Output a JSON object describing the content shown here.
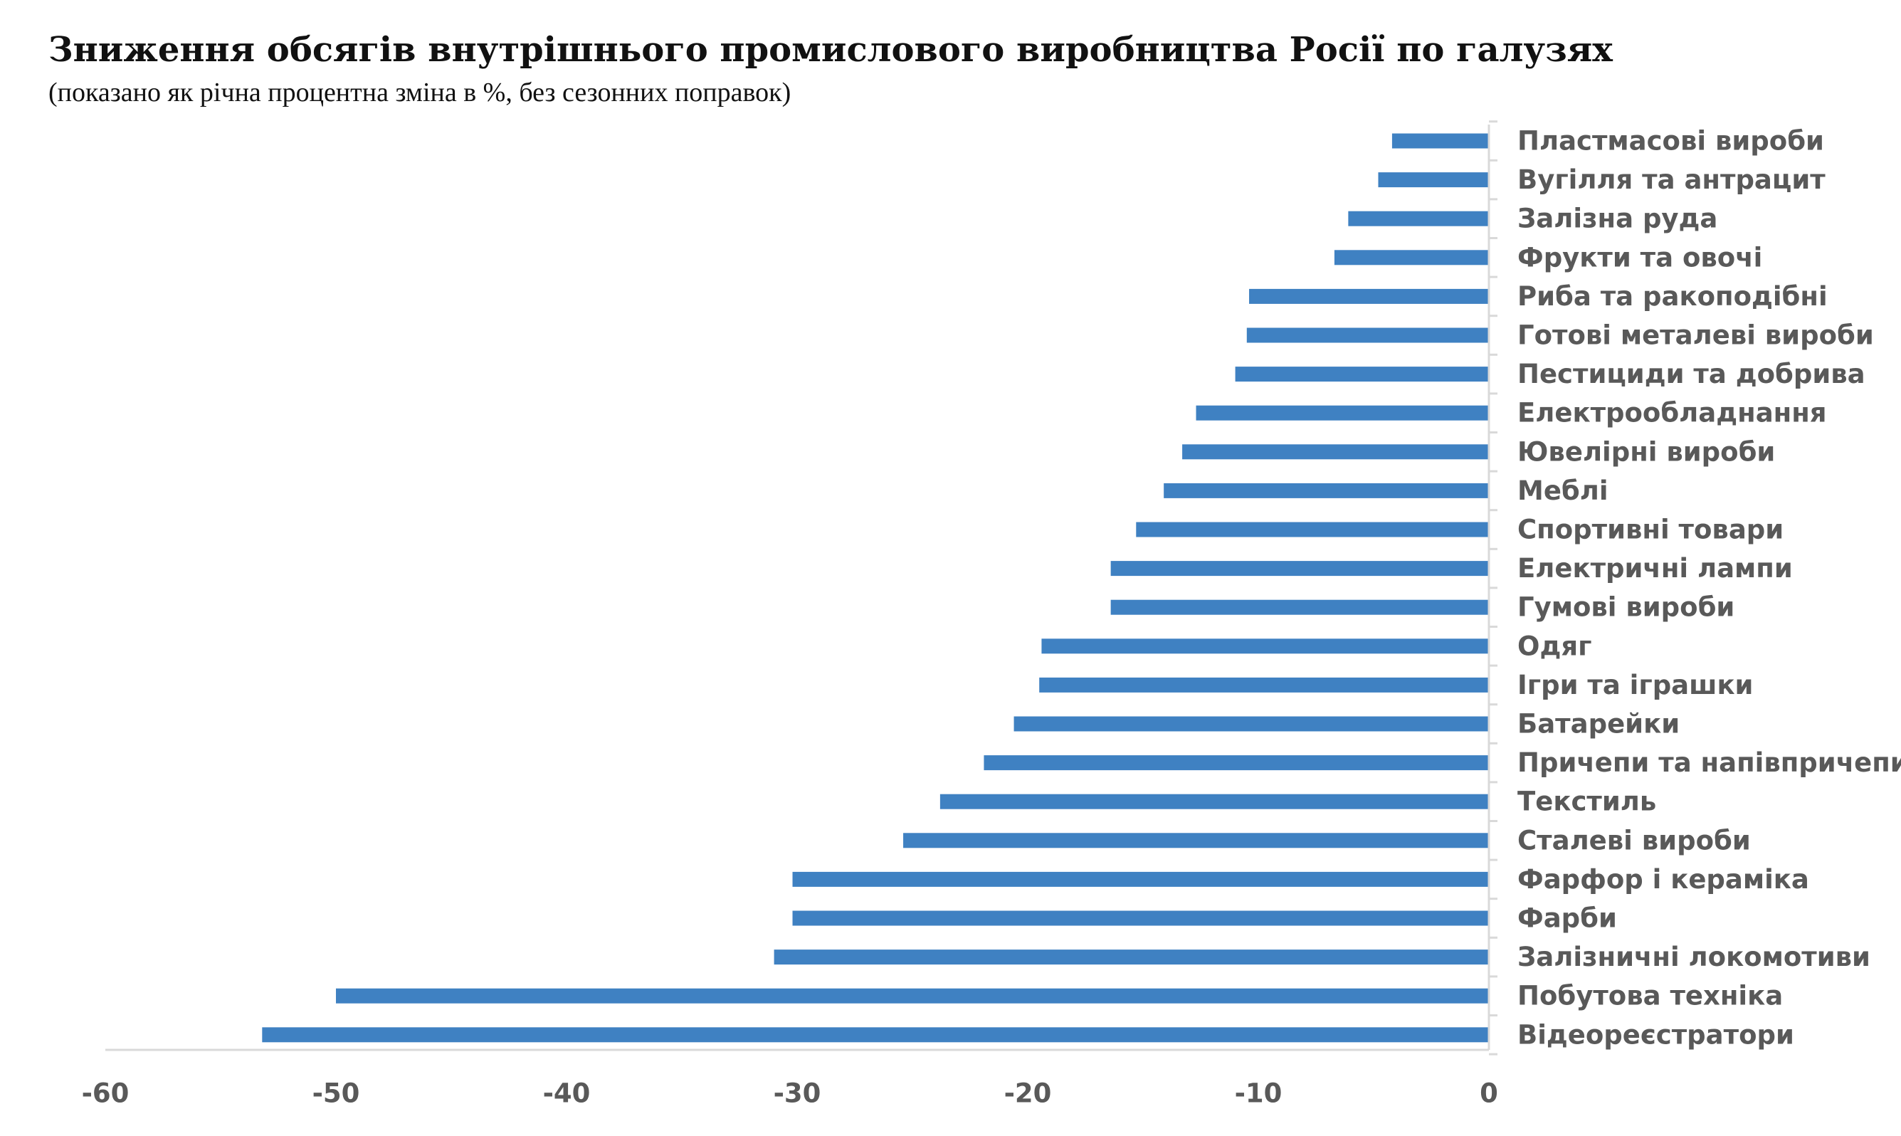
{
  "chart_data": {
    "type": "bar",
    "orientation": "horizontal",
    "title": "Зниження обсягів внутрішнього промислового виробництва Росії по галузях",
    "subtitle": "(показано як річна процентна зміна в %, без сезонних поправок)",
    "categories": [
      "Пластмасові вироби",
      "Вугілля та антрацит",
      "Залізна руда",
      "Фрукти та овочі",
      "Риба та ракоподібні",
      "Готові металеві вироби",
      "Пестициди та добрива",
      "Електрообладнання",
      "Ювелірні вироби",
      "Меблі",
      "Спортивні товари",
      "Електричні лампи",
      "Гумові вироби",
      "Одяг",
      "Ігри та іграшки",
      "Батарейки",
      "Причепи та напівпричепи",
      "Текстиль",
      "Сталеві вироби",
      "Фарфор і кераміка",
      "Фарби",
      "Залізничні локомотиви",
      "Побутова техніка",
      "Відеореєстратори"
    ],
    "values": [
      -4.2,
      -4.8,
      -6.1,
      -6.7,
      -10.4,
      -10.5,
      -11.0,
      -12.7,
      -13.3,
      -14.1,
      -15.3,
      -16.4,
      -16.4,
      -19.4,
      -19.5,
      -20.6,
      -21.9,
      -23.8,
      -25.4,
      -30.2,
      -30.2,
      -31.0,
      -50.0,
      -53.2
    ],
    "xlim": [
      -60,
      0
    ],
    "xticks": [
      -60,
      -50,
      -40,
      -30,
      -20,
      -10,
      0
    ],
    "xlabel": "",
    "ylabel": "",
    "grid": false,
    "legend": "none",
    "bar_color": "#3f81c2",
    "axis_color": "#d9d9d9",
    "label_color": "#595959"
  }
}
